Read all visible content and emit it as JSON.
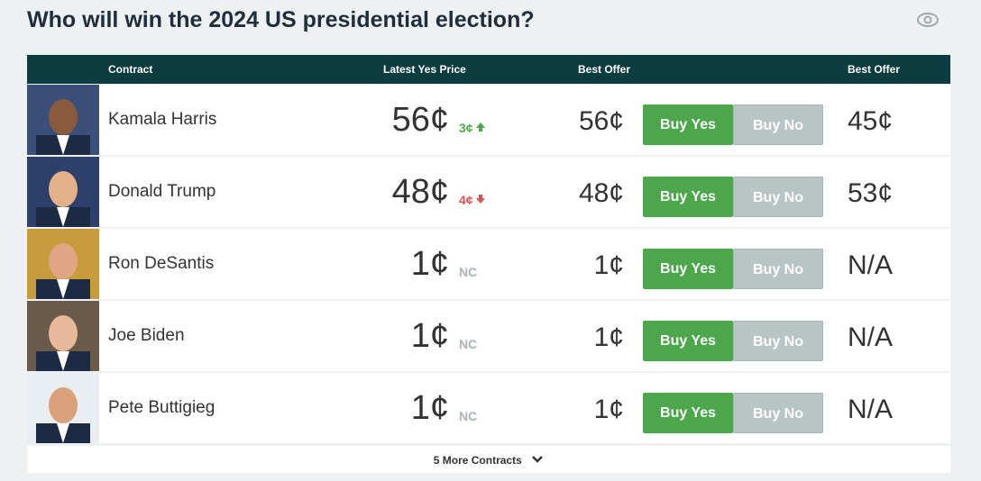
{
  "header": {
    "title": "Who will win the 2024 US presidential election?"
  },
  "table": {
    "columns": [
      "Contract",
      "Latest Yes Price",
      "Best Offer",
      "Best Offer"
    ],
    "rows": [
      {
        "name": "Kamala Harris",
        "price": "56¢",
        "change": "3¢",
        "direction": "up",
        "best_offer_yes": "56¢",
        "buy_yes": "Buy Yes",
        "buy_no": "Buy No",
        "best_offer_no": "45¢"
      },
      {
        "name": "Donald Trump",
        "price": "48¢",
        "change": "4¢",
        "direction": "down",
        "best_offer_yes": "48¢",
        "buy_yes": "Buy Yes",
        "buy_no": "Buy No",
        "best_offer_no": "53¢"
      },
      {
        "name": "Ron DeSantis",
        "price": "1¢",
        "change": "NC",
        "direction": "none",
        "best_offer_yes": "1¢",
        "buy_yes": "Buy Yes",
        "buy_no": "Buy No",
        "best_offer_no": "N/A"
      },
      {
        "name": "Joe Biden",
        "price": "1¢",
        "change": "NC",
        "direction": "none",
        "best_offer_yes": "1¢",
        "buy_yes": "Buy Yes",
        "buy_no": "Buy No",
        "best_offer_no": "N/A"
      },
      {
        "name": "Pete Buttigieg",
        "price": "1¢",
        "change": "NC",
        "direction": "none",
        "best_offer_yes": "1¢",
        "buy_yes": "Buy Yes",
        "buy_no": "Buy No",
        "best_offer_no": "N/A"
      }
    ],
    "more": "5 More Contracts"
  }
}
